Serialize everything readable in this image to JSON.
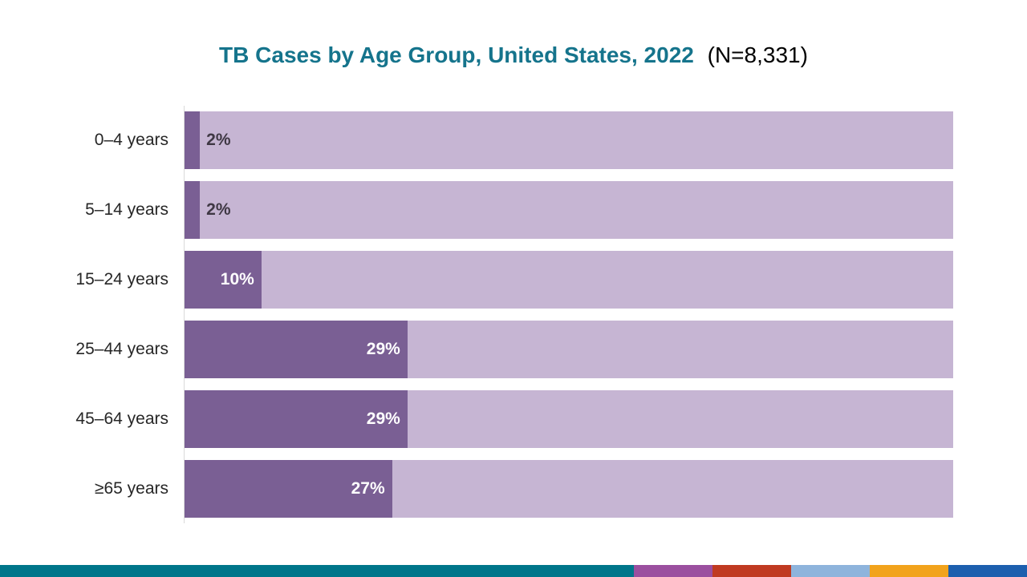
{
  "title": {
    "main": "TB Cases by Age Group, United States, 2022",
    "n_suffix": "(N=8,331)"
  },
  "chart_data": {
    "type": "bar",
    "orientation": "horizontal",
    "title": "TB Cases by Age Group, United States, 2022 (N=8,331)",
    "n_total": "8,331",
    "categories": [
      "0–4 years",
      "5–14 years",
      "15–24 years",
      "25–44 years",
      "45–64 years",
      "≥65 years"
    ],
    "values": [
      2,
      2,
      10,
      29,
      29,
      27
    ],
    "value_labels": [
      "2%",
      "2%",
      "10%",
      "29%",
      "29%",
      "27%"
    ],
    "unit": "percent",
    "xlim": [
      0,
      100
    ],
    "grid": false,
    "legend": false,
    "track_full_width": true
  },
  "colors": {
    "title": "#15748c",
    "bar": "#7a5f94",
    "track": "#c6b5d3",
    "value_inside": "#ffffff",
    "value_outside": "#3f3844",
    "axis_line": "#d9d9d9",
    "footer_teal": "#00768a",
    "footer_segments": [
      "#9b4f9f",
      "#c03a21",
      "#8eb4dc",
      "#f2a31c",
      "#1d5fae"
    ]
  }
}
